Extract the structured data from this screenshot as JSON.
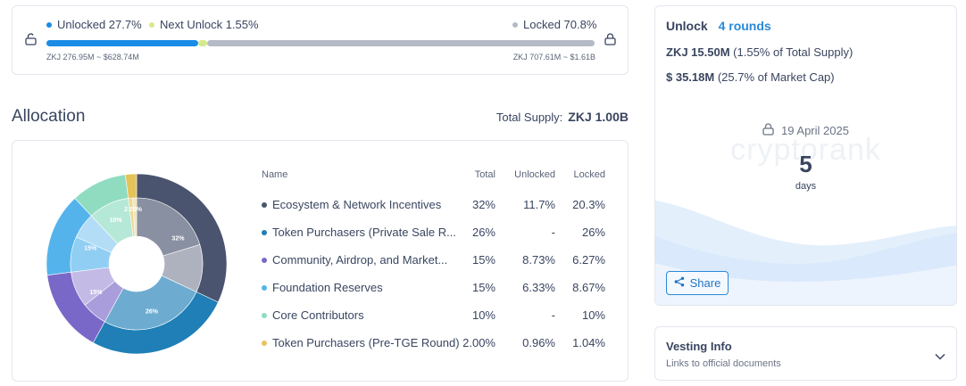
{
  "progress": {
    "unlocked_label": "Unlocked 27.7%",
    "next_label": "Next Unlock 1.55%",
    "locked_label": "Locked 70.8%",
    "unlocked_fraction": 0.277,
    "next_fraction": 0.0155,
    "locked_fraction": 0.708,
    "unlocked_value": "ZKJ 276.95M ~ $628.74M",
    "locked_value": "ZKJ 707.61M ~ $1.61B",
    "colors": {
      "unlocked": "#1a8ce6",
      "next": "#d4ea8c",
      "locked": "#b5bac6"
    }
  },
  "allocation": {
    "title": "Allocation",
    "supply_label": "Total Supply:",
    "supply_value": "ZKJ 1.00B",
    "headers": {
      "name": "Name",
      "total": "Total",
      "unlocked": "Unlocked",
      "locked": "Locked"
    },
    "rows": [
      {
        "name": "Ecosystem & Network Incentives",
        "total": "32%",
        "unlocked": "11.7%",
        "locked": "20.3%",
        "color": "#4a546e"
      },
      {
        "name": "Token Purchasers (Private Sale R...",
        "total": "26%",
        "unlocked": "-",
        "locked": "26%",
        "color": "#1f7fb6"
      },
      {
        "name": "Community, Airdrop, and Market...",
        "total": "15%",
        "unlocked": "8.73%",
        "locked": "6.27%",
        "color": "#7a68c8"
      },
      {
        "name": "Foundation Reserves",
        "total": "15%",
        "unlocked": "6.33%",
        "locked": "8.67%",
        "color": "#55b3ec"
      },
      {
        "name": "Core Contributors",
        "total": "10%",
        "unlocked": "-",
        "locked": "10%",
        "color": "#8fdcc1"
      },
      {
        "name": "Token Purchasers (Pre-TGE Round)",
        "total": "2.00%",
        "unlocked": "0.96%",
        "locked": "1.04%",
        "color": "#e5c35b"
      }
    ],
    "pie_labels": [
      "32%",
      "26%",
      "15%",
      "15%",
      "10%",
      "2.00%"
    ]
  },
  "unlock": {
    "title": "Unlock",
    "rounds": "4 rounds",
    "token_amount": "ZKJ 15.50M",
    "token_note": "(1.55% of Total Supply)",
    "usd_amount": "$ 35.18M",
    "usd_note": "(25.7% of Market Cap)",
    "date": "19 April 2025",
    "days_value": "5",
    "days_label": "days",
    "watermark": "cryptorank",
    "share_label": "Share"
  },
  "vesting": {
    "title": "Vesting Info",
    "subtitle": "Links to official documents"
  },
  "icons": [
    "lock-icon",
    "share-icon",
    "chevron-down-icon"
  ]
}
